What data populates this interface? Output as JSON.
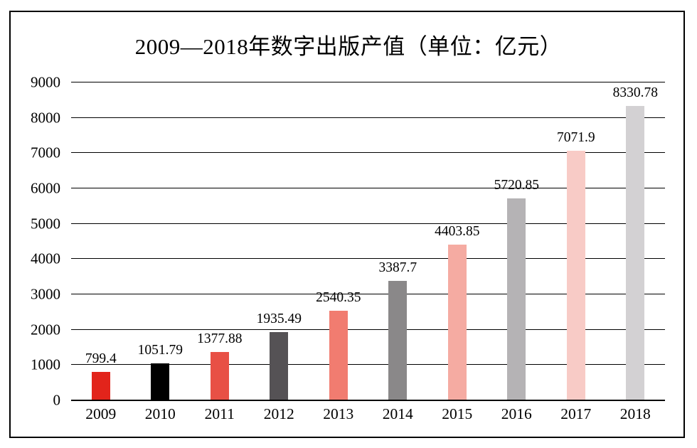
{
  "figure": {
    "background_color": "#ffffff",
    "frame_border_color": "#000000"
  },
  "chart_data": {
    "type": "bar",
    "title": "2009—2018年数字出版产值（单位：亿元）",
    "categories": [
      "2009",
      "2010",
      "2011",
      "2012",
      "2013",
      "2014",
      "2015",
      "2016",
      "2017",
      "2018"
    ],
    "values": [
      799.4,
      1051.79,
      1377.88,
      1935.49,
      2540.35,
      3387.7,
      4403.85,
      5720.85,
      7071.9,
      8330.78
    ],
    "data_labels": [
      "799.4",
      "1051.79",
      "1377.88",
      "1935.49",
      "2540.35",
      "3387.7",
      "4403.85",
      "5720.85",
      "7071.9",
      "8330.78"
    ],
    "bar_colors": [
      "#e2241b",
      "#000000",
      "#e85045",
      "#555255",
      "#f17c70",
      "#8a8889",
      "#f5aba2",
      "#b5b3b5",
      "#f8cbc6",
      "#d3d1d3"
    ],
    "xlabel": "",
    "ylabel": "",
    "ylim": [
      0,
      9000
    ],
    "yticks": [
      0,
      1000,
      2000,
      3000,
      4000,
      5000,
      6000,
      7000,
      8000,
      9000
    ],
    "grid": true,
    "gridline_color": "#000000",
    "legend": false,
    "legend_position": "none"
  }
}
